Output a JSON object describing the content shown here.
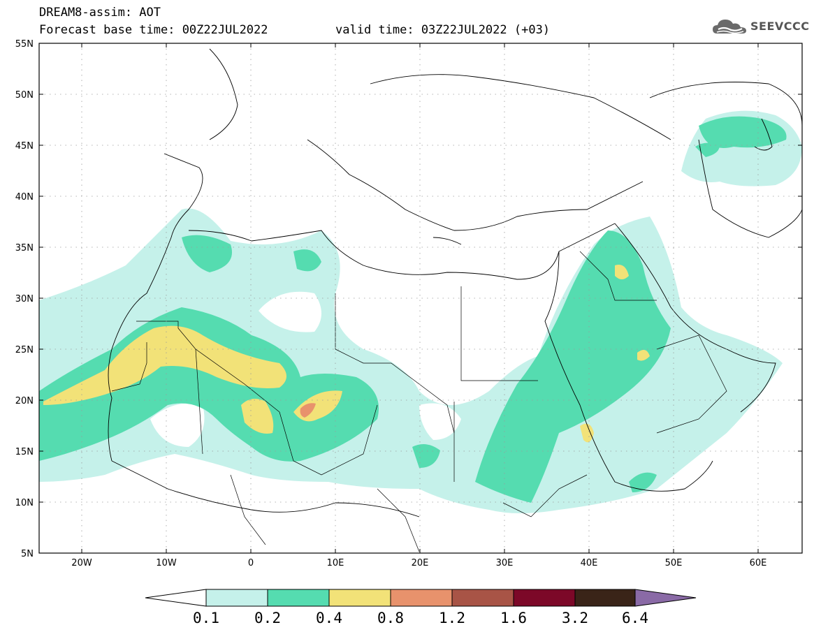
{
  "header": {
    "model_title": "DREAM8-assim: AOT",
    "base_time": "Forecast base time: 00Z22JUL2022",
    "valid_time": "valid time: 03Z22JUL2022 (+03)"
  },
  "logo": {
    "text": "SEEVCCC",
    "icon": "cloud-logo-icon"
  },
  "map": {
    "lon_labels": [
      "20W",
      "10W",
      "0",
      "10E",
      "20E",
      "30E",
      "40E",
      "50E",
      "60E"
    ],
    "lat_labels": [
      "55N",
      "50N",
      "45N",
      "40N",
      "35N",
      "30N",
      "25N",
      "20N",
      "15N",
      "10N",
      "5N"
    ],
    "colors": {
      "frame": "#000000",
      "coast": "#000000",
      "grid": "#9a9a9a"
    }
  },
  "colorbar": {
    "labels": [
      "0.1",
      "0.2",
      "0.4",
      "0.8",
      "1.2",
      "1.6",
      "3.2",
      "6.4"
    ],
    "colors": [
      "#ffffff",
      "#c5f1ea",
      "#55dcb0",
      "#f2e278",
      "#e8926c",
      "#a85446",
      "#7c0828",
      "#3a2418",
      "#8a6aa6"
    ]
  }
}
